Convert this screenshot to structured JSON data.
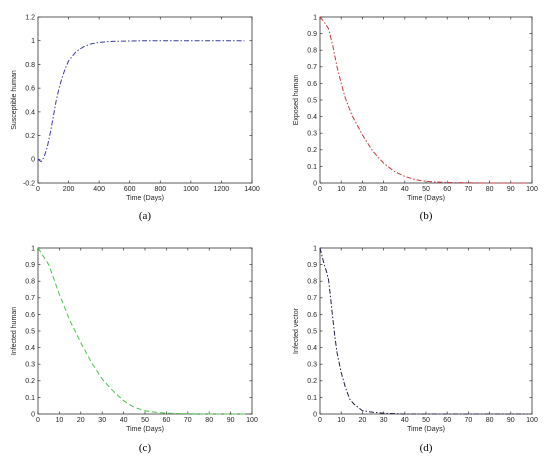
{
  "chart_data": [
    {
      "panel_label": "(a)",
      "type": "line",
      "xlabel": "Time (Days)",
      "ylabel": "Susceptible human",
      "xlim": [
        0,
        1400
      ],
      "ylim": [
        -0.2,
        1.2
      ],
      "xticks": [
        0,
        200,
        400,
        600,
        800,
        1000,
        1200,
        1400
      ],
      "yticks": [
        -0.2,
        0,
        0.2,
        0.4,
        0.6,
        0.8,
        1,
        1.2
      ],
      "xtick_labels": [
        "0",
        "200",
        "400",
        "600",
        "800",
        "1000",
        "1200",
        "1400"
      ],
      "ytick_labels": [
        "-0.2",
        "0",
        "0.2",
        "0.4",
        "0.6",
        "0.8",
        "1",
        "1.2"
      ],
      "grid": false,
      "series": [
        {
          "color": "#3a3aa8",
          "dash": "dash-dot",
          "x": [
            0,
            20,
            40,
            60,
            80,
            100,
            120,
            140,
            160,
            180,
            200,
            250,
            300,
            350,
            400,
            450,
            500,
            600,
            700,
            800,
            1000,
            1200,
            1350
          ],
          "y": [
            0,
            -0.02,
            0.02,
            0.1,
            0.22,
            0.36,
            0.5,
            0.61,
            0.7,
            0.77,
            0.83,
            0.91,
            0.95,
            0.975,
            0.985,
            0.992,
            0.995,
            0.998,
            1.0,
            1.0,
            1.0,
            1.0,
            1.0
          ]
        }
      ]
    },
    {
      "panel_label": "(b)",
      "type": "line",
      "xlabel": "Time (Days)",
      "ylabel": "Exposed human",
      "xlim": [
        0,
        100
      ],
      "ylim": [
        0,
        1
      ],
      "xticks": [
        0,
        10,
        20,
        30,
        40,
        50,
        60,
        70,
        80,
        90,
        100
      ],
      "yticks": [
        0,
        0.1,
        0.2,
        0.3,
        0.4,
        0.5,
        0.6,
        0.7,
        0.8,
        0.9,
        1
      ],
      "xtick_labels": [
        "0",
        "10",
        "20",
        "30",
        "40",
        "50",
        "60",
        "70",
        "80",
        "90",
        "100"
      ],
      "ytick_labels": [
        "0",
        "0.1",
        "0.2",
        "0.3",
        "0.4",
        "0.5",
        "0.6",
        "0.7",
        "0.8",
        "0.9",
        "1"
      ],
      "grid": false,
      "series": [
        {
          "color": "#c8383c",
          "dash": "dash-dot",
          "x": [
            0,
            2,
            4,
            6,
            8,
            10,
            12,
            15,
            20,
            25,
            30,
            35,
            40,
            45,
            50,
            55,
            60,
            70,
            80,
            90,
            98
          ],
          "y": [
            1.0,
            0.97,
            0.93,
            0.83,
            0.7,
            0.6,
            0.51,
            0.41,
            0.29,
            0.19,
            0.12,
            0.07,
            0.04,
            0.02,
            0.01,
            0.006,
            0.003,
            0.001,
            0,
            0,
            0
          ]
        }
      ]
    },
    {
      "panel_label": "(c)",
      "type": "line",
      "xlabel": "Time (Days)",
      "ylabel": "Infected human",
      "xlim": [
        0,
        100
      ],
      "ylim": [
        0,
        1
      ],
      "xticks": [
        0,
        10,
        20,
        30,
        40,
        50,
        60,
        70,
        80,
        90,
        100
      ],
      "yticks": [
        0,
        0.1,
        0.2,
        0.3,
        0.4,
        0.5,
        0.6,
        0.7,
        0.8,
        0.9,
        1
      ],
      "xtick_labels": [
        "0",
        "10",
        "20",
        "30",
        "40",
        "50",
        "60",
        "70",
        "80",
        "90",
        "100"
      ],
      "ytick_labels": [
        "0",
        "0.1",
        "0.2",
        "0.3",
        "0.4",
        "0.5",
        "0.6",
        "0.7",
        "0.8",
        "0.9",
        "1"
      ],
      "grid": false,
      "series": [
        {
          "color": "#4cc24c",
          "dash": "dashed",
          "x": [
            0,
            5,
            10,
            15,
            20,
            25,
            30,
            35,
            40,
            45,
            50,
            55,
            60,
            65,
            70,
            80,
            90,
            98
          ],
          "y": [
            1.0,
            0.9,
            0.72,
            0.56,
            0.43,
            0.31,
            0.21,
            0.14,
            0.08,
            0.04,
            0.02,
            0.01,
            0.005,
            0.003,
            0.002,
            0,
            0,
            0
          ]
        }
      ]
    },
    {
      "panel_label": "(d)",
      "type": "line",
      "xlabel": "Time (Days)",
      "ylabel": "Infected vector",
      "xlim": [
        0,
        100
      ],
      "ylim": [
        0,
        1
      ],
      "xticks": [
        0,
        10,
        20,
        30,
        40,
        50,
        60,
        70,
        80,
        90,
        100
      ],
      "yticks": [
        0,
        0.1,
        0.2,
        0.3,
        0.4,
        0.5,
        0.6,
        0.7,
        0.8,
        0.9,
        1
      ],
      "xtick_labels": [
        "0",
        "10",
        "20",
        "30",
        "40",
        "50",
        "60",
        "70",
        "80",
        "90",
        "100"
      ],
      "ytick_labels": [
        "0",
        "0.1",
        "0.2",
        "0.3",
        "0.4",
        "0.5",
        "0.6",
        "0.7",
        "0.8",
        "0.9",
        "1"
      ],
      "grid": false,
      "series": [
        {
          "color": "#222244",
          "dash": "dash-dot",
          "x": [
            0,
            1,
            2,
            3,
            4,
            5,
            6,
            7,
            8,
            10,
            12,
            14,
            16,
            18,
            20,
            25,
            30,
            40,
            50,
            70,
            98
          ],
          "y": [
            1.0,
            0.95,
            0.9,
            0.86,
            0.81,
            0.7,
            0.58,
            0.47,
            0.37,
            0.25,
            0.16,
            0.09,
            0.06,
            0.04,
            0.02,
            0.01,
            0.005,
            0,
            0,
            0,
            0
          ]
        }
      ]
    }
  ]
}
